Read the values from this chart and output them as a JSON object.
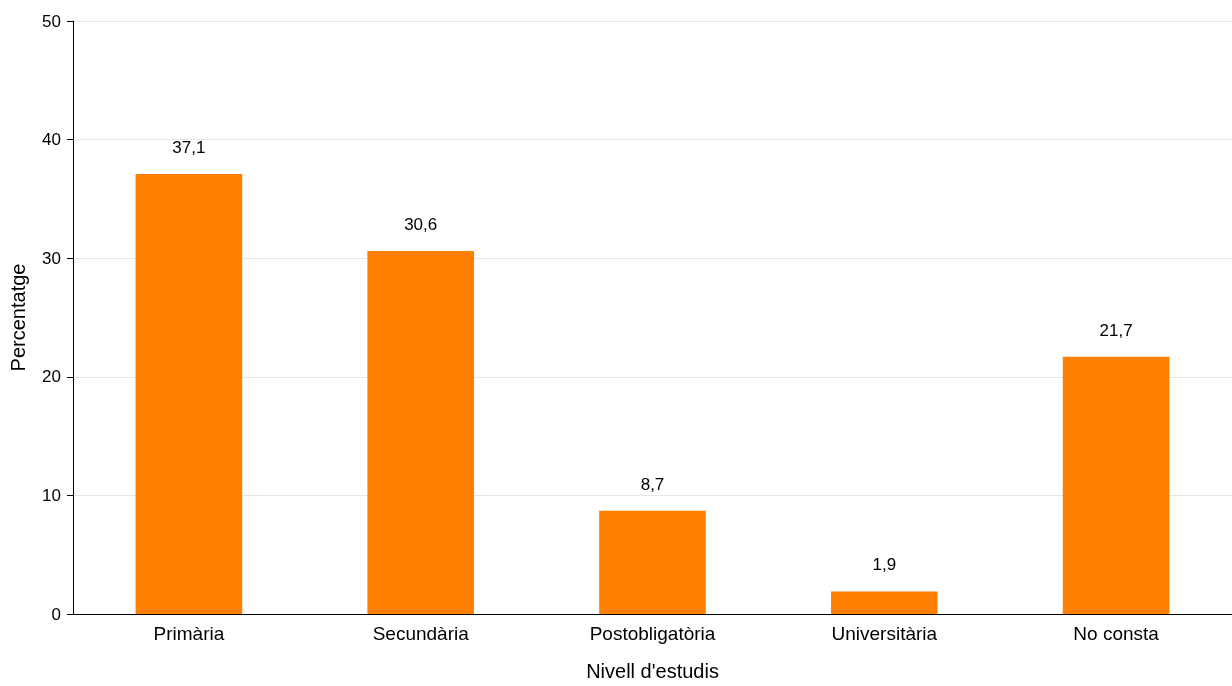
{
  "chart_data": {
    "type": "bar",
    "xlabel": "Nivell d'estudis",
    "ylabel": "Percentatge",
    "categories": [
      "Primària",
      "Secundària",
      "Postobligatòria",
      "Universitària",
      "No consta"
    ],
    "values": [
      37.1,
      30.6,
      8.7,
      1.9,
      21.7
    ],
    "value_labels": [
      "37,1",
      "30,6",
      "8,7",
      "1,9",
      "21,7"
    ],
    "color": "#ff8000",
    "ylim": [
      0,
      50
    ],
    "yticks": [
      0,
      10,
      20,
      30,
      40,
      50
    ],
    "grid": "y"
  }
}
